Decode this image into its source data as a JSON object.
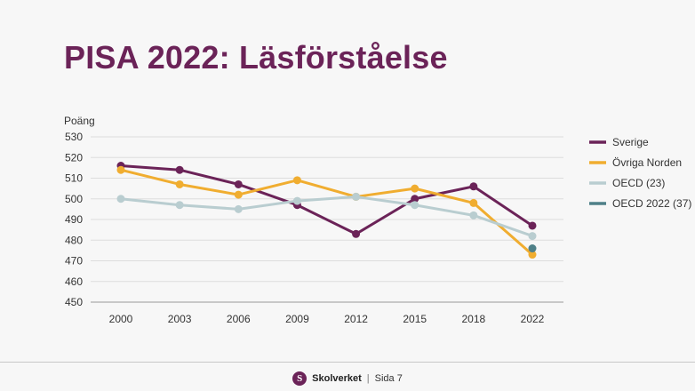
{
  "slide": {
    "title": "PISA 2022: Läsförståelse",
    "footer": {
      "brand": "Skolverket",
      "logo_letter": "S",
      "separator": "|",
      "page": "Sida 7"
    }
  },
  "chart_data": {
    "type": "line",
    "title": "PISA 2022: Läsförståelse",
    "xlabel": "",
    "ylabel": "Poäng",
    "categories": [
      "2000",
      "2003",
      "2006",
      "2009",
      "2012",
      "2015",
      "2018",
      "2022"
    ],
    "ylim": [
      450,
      530
    ],
    "yticks": [
      450,
      460,
      470,
      480,
      490,
      500,
      510,
      520,
      530
    ],
    "grid": true,
    "legend_position": "right",
    "series": [
      {
        "name": "Sverige",
        "color": "#6b2358",
        "values": [
          516,
          514,
          507,
          497,
          483,
          500,
          506,
          487
        ]
      },
      {
        "name": "Övriga Norden",
        "color": "#f0ad30",
        "values": [
          514,
          507,
          502,
          509,
          501,
          505,
          498,
          473
        ]
      },
      {
        "name": "OECD (23)",
        "color": "#b9cdd0",
        "values": [
          500,
          497,
          495,
          499,
          501,
          497,
          492,
          482
        ]
      },
      {
        "name": "OECD 2022 (37)",
        "color": "#4f8088",
        "values": [
          null,
          null,
          null,
          null,
          null,
          null,
          null,
          476
        ]
      }
    ]
  }
}
